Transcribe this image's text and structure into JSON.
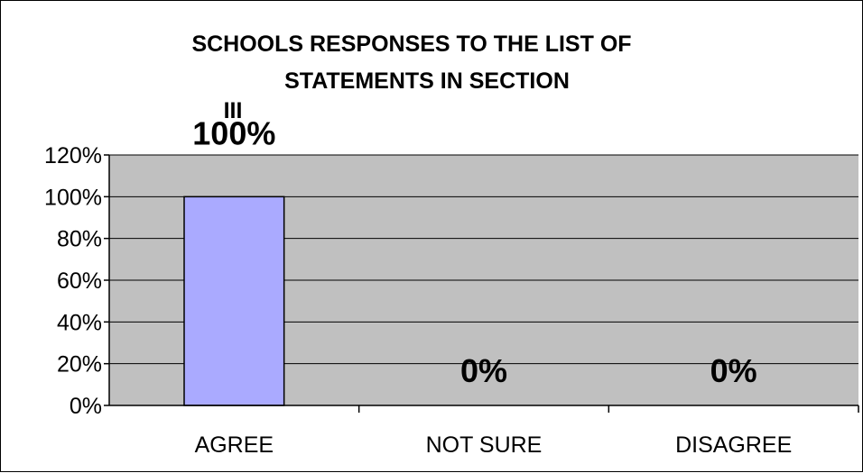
{
  "chart_data": {
    "type": "bar",
    "title_lines": [
      "SCHOOLS RESPONSES TO THE LIST OF",
      "STATEMENTS IN SECTION",
      "III"
    ],
    "categories": [
      "AGREE",
      "NOT SURE",
      "DISAGREE"
    ],
    "values": [
      100,
      0,
      0
    ],
    "data_labels": [
      "100%",
      "0%",
      "0%"
    ],
    "y_ticks": [
      "0%",
      "20%",
      "40%",
      "60%",
      "80%",
      "100%",
      "120%"
    ],
    "ylim": [
      0,
      120
    ],
    "y_step": 20,
    "grid": true,
    "legend": "none",
    "colors": {
      "bar_fill": "#aaaaff",
      "bar_stroke": "#000000",
      "plot_background": "#c0c0c0",
      "gridline": "#000000"
    }
  }
}
